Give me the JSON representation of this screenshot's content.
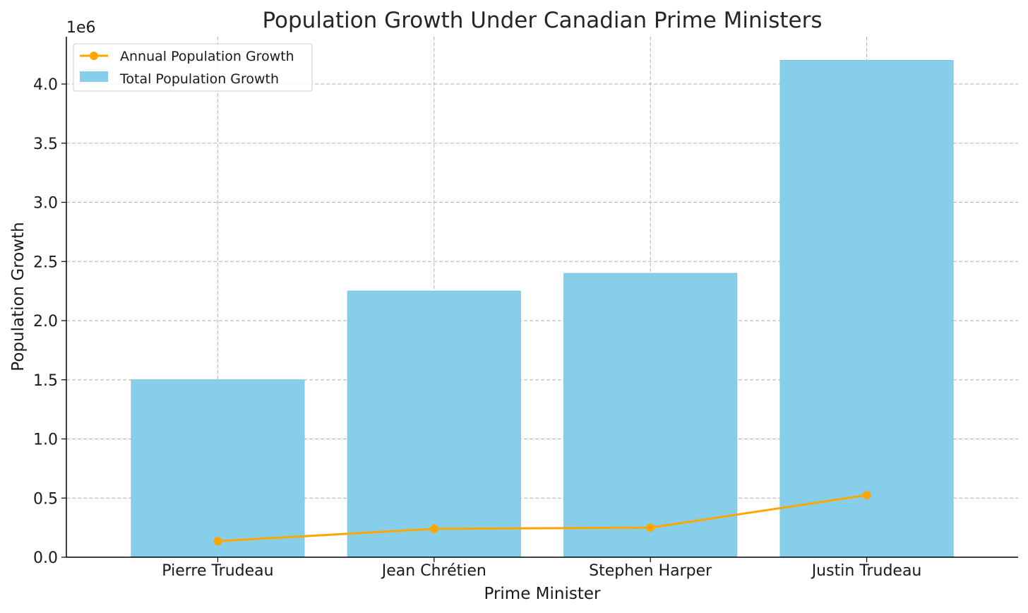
{
  "chart_data": {
    "type": "bar",
    "title": "Population Growth Under Canadian Prime Ministers",
    "xlabel": "Prime Minister",
    "ylabel": "Population Growth",
    "offset_label": "1e6",
    "categories": [
      "Pierre Trudeau",
      "Jean Chrétien",
      "Stephen Harper",
      "Justin Trudeau"
    ],
    "ylim": [
      0,
      4.4
    ],
    "yticks": [
      0.0,
      0.5,
      1.0,
      1.5,
      2.0,
      2.5,
      3.0,
      3.5,
      4.0
    ],
    "ytick_labels": [
      "0.0",
      "0.5",
      "1.0",
      "1.5",
      "2.0",
      "2.5",
      "3.0",
      "3.5",
      "4.0"
    ],
    "grid": true,
    "legend_position": "top-left",
    "series": [
      {
        "name": "Total Population Growth",
        "type": "bar",
        "color": "#87CEEB",
        "values": [
          1.5,
          2.25,
          2.4,
          4.2
        ]
      },
      {
        "name": "Annual Population Growth",
        "type": "line",
        "color": "#FFA500",
        "values": [
          0.136,
          0.24,
          0.25,
          0.525
        ]
      }
    ]
  }
}
